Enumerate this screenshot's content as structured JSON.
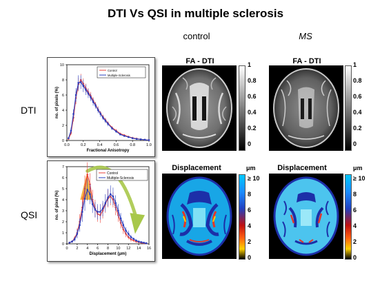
{
  "title": "DTI Vs QSI in multiple sclerosis",
  "columns": {
    "control": "control",
    "ms": "MS"
  },
  "rows": {
    "dti": "DTI",
    "qsi": "QSI"
  },
  "panels": {
    "fa_label": "FA - DTI",
    "disp_label": "Displacement",
    "disp_unit": "μm",
    "fa_ticks": [
      "1",
      "0.8",
      "0.6",
      "0.4",
      "0.2",
      "0"
    ],
    "disp_ticks_control": [
      "≥ 10",
      "8",
      "6",
      "4",
      "2",
      "0"
    ],
    "disp_ticks_ms": [
      "≥ 10",
      "8",
      "6",
      "4",
      "2",
      "0"
    ]
  },
  "colors": {
    "control": "#e8403a",
    "ms": "#2a3fbf",
    "arrow": "#a8c84a"
  },
  "chart_data": [
    {
      "type": "line",
      "xlabel": "Fractional Anisotropy",
      "ylabel": "no. of pixels (%)",
      "xlim": [
        0,
        1.0
      ],
      "ylim": [
        0,
        10
      ],
      "xticks": [
        "0.0",
        "0.2",
        "0.4",
        "0.6",
        "0.8",
        "1.0"
      ],
      "yticks": [
        "0",
        "2",
        "4",
        "6",
        "8",
        "10"
      ],
      "legend": "top-right",
      "x": [
        0.02,
        0.05,
        0.08,
        0.11,
        0.14,
        0.17,
        0.2,
        0.23,
        0.26,
        0.29,
        0.32,
        0.35,
        0.38,
        0.41,
        0.44,
        0.47,
        0.5,
        0.55,
        0.6,
        0.65,
        0.7,
        0.75,
        0.8,
        0.85,
        0.9,
        0.95,
        1.0
      ],
      "series": [
        {
          "name": "Control",
          "values": [
            0.2,
            1.0,
            3.0,
            5.6,
            7.4,
            8.0,
            7.5,
            6.9,
            6.4,
            5.9,
            5.3,
            4.7,
            4.1,
            3.6,
            3.1,
            2.7,
            2.3,
            1.7,
            1.3,
            0.9,
            0.7,
            0.5,
            0.35,
            0.25,
            0.15,
            0.1,
            0.05
          ],
          "errors": [
            0.1,
            0.3,
            0.5,
            0.8,
            0.9,
            0.8,
            0.7,
            0.6,
            0.5,
            0.5,
            0.4,
            0.4,
            0.4,
            0.3,
            0.3,
            0.3,
            0.2,
            0.2,
            0.2,
            0.1,
            0.1,
            0.1,
            0.1,
            0.1,
            0.05,
            0.05,
            0.05
          ]
        },
        {
          "name": "Multiple-Sclerosis",
          "values": [
            0.3,
            1.3,
            3.5,
            6.0,
            7.6,
            7.7,
            7.2,
            6.7,
            6.2,
            5.7,
            5.1,
            4.6,
            4.0,
            3.5,
            3.0,
            2.6,
            2.2,
            1.6,
            1.2,
            0.8,
            0.6,
            0.45,
            0.3,
            0.2,
            0.15,
            0.1,
            0.05
          ],
          "errors": [
            0.1,
            0.4,
            0.6,
            0.9,
            1.0,
            0.9,
            0.8,
            0.7,
            0.6,
            0.5,
            0.5,
            0.4,
            0.4,
            0.4,
            0.3,
            0.3,
            0.3,
            0.2,
            0.2,
            0.1,
            0.1,
            0.1,
            0.1,
            0.1,
            0.05,
            0.05,
            0.05
          ]
        }
      ]
    },
    {
      "type": "line",
      "xlabel": "Displacement (μm)",
      "ylabel": "no. of pixel (%)",
      "xlim": [
        0,
        16
      ],
      "ylim": [
        0,
        7
      ],
      "xticks": [
        "0",
        "2",
        "4",
        "6",
        "8",
        "10",
        "12",
        "14",
        "16"
      ],
      "yticks": [
        "0",
        "1",
        "2",
        "3",
        "4",
        "5",
        "6",
        "7"
      ],
      "legend": "top-right",
      "x": [
        0.5,
        1,
        1.5,
        2,
        2.5,
        3,
        3.5,
        4,
        4.5,
        5,
        5.5,
        6,
        6.5,
        7,
        7.5,
        8,
        8.5,
        9,
        9.5,
        10,
        10.5,
        11,
        11.5,
        12,
        12.5,
        13,
        13.5,
        14,
        14.5,
        15,
        15.5
      ],
      "series": [
        {
          "name": "Control",
          "values": [
            0.1,
            0.2,
            0.5,
            1.0,
            2.0,
            3.3,
            5.0,
            6.3,
            5.4,
            4.0,
            3.2,
            2.7,
            2.6,
            3.0,
            3.6,
            4.1,
            4.3,
            4.0,
            3.3,
            2.6,
            1.9,
            1.3,
            0.9,
            0.6,
            0.4,
            0.3,
            0.2,
            0.15,
            0.1,
            0.05,
            0.05
          ],
          "errors": [
            0.05,
            0.1,
            0.2,
            0.4,
            0.7,
            1.0,
            1.2,
            1.1,
            1.0,
            0.9,
            0.8,
            0.7,
            0.7,
            0.7,
            0.8,
            0.8,
            0.8,
            0.7,
            0.7,
            0.6,
            0.5,
            0.4,
            0.3,
            0.2,
            0.2,
            0.1,
            0.1,
            0.1,
            0.05,
            0.05,
            0.05
          ]
        },
        {
          "name": "Multiple-Sclerosis",
          "values": [
            0.1,
            0.2,
            0.4,
            0.9,
            1.7,
            2.9,
            4.1,
            4.9,
            4.5,
            3.6,
            3.1,
            2.9,
            2.9,
            3.2,
            3.7,
            4.2,
            4.5,
            4.3,
            3.7,
            3.0,
            2.3,
            1.7,
            1.2,
            0.9,
            0.6,
            0.45,
            0.3,
            0.2,
            0.15,
            0.1,
            0.05
          ],
          "errors": [
            0.05,
            0.1,
            0.2,
            0.4,
            0.6,
            0.9,
            1.1,
            1.0,
            0.9,
            0.8,
            0.7,
            0.7,
            0.7,
            0.7,
            0.8,
            0.8,
            0.8,
            0.8,
            0.7,
            0.6,
            0.5,
            0.4,
            0.3,
            0.3,
            0.2,
            0.1,
            0.1,
            0.1,
            0.05,
            0.05,
            0.05
          ]
        }
      ]
    }
  ]
}
